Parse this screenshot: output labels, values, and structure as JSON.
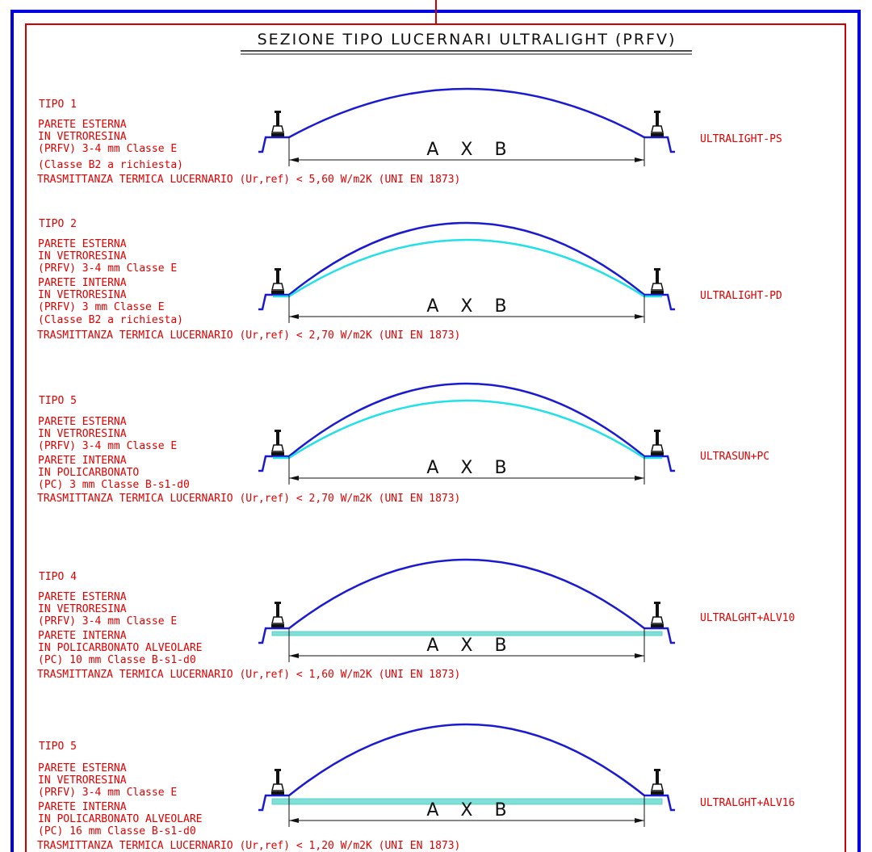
{
  "title": "SEZIONE TIPO LUCERNARI ULTRALIGHT (PRFV)",
  "colors": {
    "frame_outer": "#0000e0",
    "frame_inner": "#d00000",
    "text": "#e00000",
    "outer_wall": "#1a1ad0",
    "inner_wall": "#22e0e8",
    "cellular_panel": "#7fe0d8"
  },
  "dimension_label": "A X B",
  "sections": [
    {
      "tipo": "TIPO 1",
      "lines": [
        "PARETE ESTERNA",
        "IN VETRORESINA",
        "(PRFV) 3-4 mm Classe E",
        "(Classe B2 a richiesta)"
      ],
      "trasmittanza": "TRASMITTANZA TERMICA LUCERNARIO (Ur,ref) < 5,60 W/m2K (UNI EN 1873)",
      "product": "ULTRALIGHT-PS",
      "inner": "none"
    },
    {
      "tipo": "TIPO 2",
      "lines": [
        "PARETE ESTERNA",
        "IN VETRORESINA",
        "(PRFV) 3-4 mm Classe E",
        "PARETE INTERNA",
        "IN VETRORESINA",
        "(PRFV) 3 mm Classe E",
        "(Classe B2 a richiesta)"
      ],
      "trasmittanza": "TRASMITTANZA TERMICA LUCERNARIO (Ur,ref) < 2,70 W/m2K (UNI EN 1873)",
      "product": "ULTRALIGHT-PD",
      "inner": "dome"
    },
    {
      "tipo": "TIPO 5",
      "lines": [
        "PARETE ESTERNA",
        "IN VETRORESINA",
        "(PRFV) 3-4 mm Classe E",
        "PARETE INTERNA",
        "IN POLICARBONATO",
        "(PC) 3 mm Classe B-s1-d0"
      ],
      "trasmittanza": "TRASMITTANZA TERMICA LUCERNARIO (Ur,ref) < 2,70 W/m2K (UNI EN 1873)",
      "product": "ULTRASUN+PC",
      "inner": "dome"
    },
    {
      "tipo": "TIPO 4",
      "lines": [
        "PARETE ESTERNA",
        "IN VETRORESINA",
        "(PRFV) 3-4 mm Classe E",
        "PARETE INTERNA",
        "IN POLICARBONATO ALVEOLARE",
        "(PC) 10 mm Classe B-s1-d0"
      ],
      "trasmittanza": "TRASMITTANZA TERMICA LUCERNARIO (Ur,ref) < 1,60 W/m2K (UNI EN 1873)",
      "product": "ULTRALGHT+ALV10",
      "inner": "flat-10"
    },
    {
      "tipo": "TIPO 5",
      "lines": [
        "PARETE ESTERNA",
        "IN VETRORESINA",
        "(PRFV) 3-4 mm Classe E",
        "PARETE INTERNA",
        "IN POLICARBONATO ALVEOLARE",
        "(PC) 16 mm Classe B-s1-d0"
      ],
      "trasmittanza": "TRASMITTANZA TERMICA LUCERNARIO (Ur,ref) < 1,20 W/m2K (UNI EN 1873)",
      "product": "ULTRALGHT+ALV16",
      "inner": "flat-16"
    }
  ]
}
